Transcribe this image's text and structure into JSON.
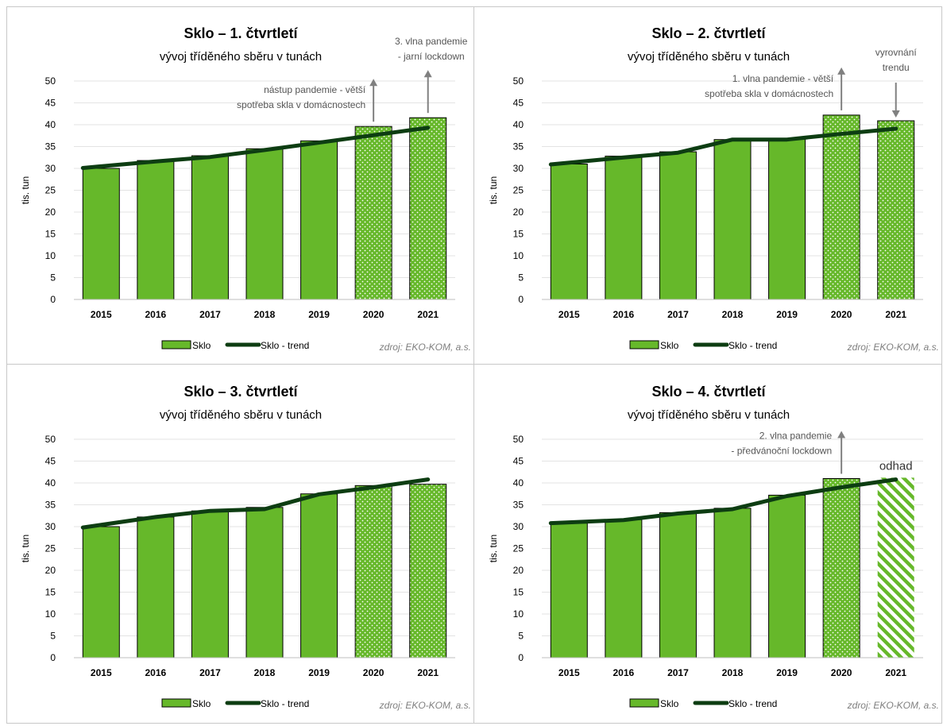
{
  "colors": {
    "bar": "#66b82a",
    "bar_border": "#000000",
    "trend": "#0d3d12",
    "gridline": "#e3e3e3",
    "annotation": "#555555",
    "arrow": "#808080",
    "source": "#7f7f7f"
  },
  "chart_data": [
    {
      "type": "bar",
      "title": "Sklo – 1. čtvrtletí",
      "subtitle": "vývoj tříděného sběru v tunách",
      "ylabel": "tis. tun",
      "ylim": [
        0,
        50
      ],
      "yticks": [
        "0",
        "5",
        "10",
        "15",
        "20",
        "25",
        "30",
        "35",
        "40",
        "45",
        "50"
      ],
      "categories": [
        "2015",
        "2016",
        "2017",
        "2018",
        "2019",
        "2020",
        "2021"
      ],
      "series": [
        {
          "name": "Sklo",
          "values": [
            30.0,
            31.8,
            32.9,
            34.5,
            36.3,
            39.6,
            41.6
          ],
          "pattern": [
            "solid",
            "solid",
            "solid",
            "solid",
            "solid",
            "dots",
            "dots"
          ]
        },
        {
          "name": "Sklo - trend",
          "type": "line",
          "values": [
            30.1,
            31.6,
            32.6,
            34.2,
            35.9,
            37.6,
            39.3
          ]
        }
      ],
      "annotations": [
        {
          "lines": [
            "nástup pandemie - větší",
            "spotřeba skla v domácnostech"
          ],
          "category": "2020",
          "arrow": "up"
        },
        {
          "lines": [
            "3. vlna pandemie",
            "- jarní lockdown"
          ],
          "category": "2021",
          "arrow": "up"
        }
      ],
      "legend": {
        "placement": "bottom",
        "items": [
          "Sklo",
          "Sklo - trend"
        ]
      },
      "source": "zdroj: EKO-KOM, a.s.",
      "grid": true
    },
    {
      "type": "bar",
      "title": "Sklo – 2. čtvrtletí",
      "subtitle": "vývoj tříděného sběru v tunách",
      "ylabel": "tis. tun",
      "ylim": [
        0,
        50
      ],
      "yticks": [
        "0",
        "5",
        "10",
        "15",
        "20",
        "25",
        "30",
        "35",
        "40",
        "45",
        "50"
      ],
      "categories": [
        "2015",
        "2016",
        "2017",
        "2018",
        "2019",
        "2020",
        "2021"
      ],
      "series": [
        {
          "name": "Sklo",
          "values": [
            31.0,
            32.8,
            33.8,
            36.6,
            36.8,
            42.2,
            40.9
          ],
          "pattern": [
            "solid",
            "solid",
            "solid",
            "solid",
            "solid",
            "dots",
            "dots"
          ]
        },
        {
          "name": "Sklo - trend",
          "type": "line",
          "values": [
            30.9,
            32.5,
            33.6,
            36.6,
            36.6,
            37.9,
            39.1
          ]
        }
      ],
      "annotations": [
        {
          "lines": [
            "1. vlna pandemie - větší",
            "spotřeba skla v domácnostech"
          ],
          "category": "2020",
          "arrow": "up"
        },
        {
          "lines": [
            "vyrovnání",
            "trendu"
          ],
          "category": "2021",
          "arrow": "down"
        }
      ],
      "legend": {
        "placement": "bottom",
        "items": [
          "Sklo",
          "Sklo - trend"
        ]
      },
      "source": "zdroj: EKO-KOM, a.s.",
      "grid": true
    },
    {
      "type": "bar",
      "title": "Sklo – 3. čtvrtletí",
      "subtitle": "vývoj tříděného sběru v tunách",
      "ylabel": "tis. tun",
      "ylim": [
        0,
        50
      ],
      "yticks": [
        "0",
        "5",
        "10",
        "15",
        "20",
        "25",
        "30",
        "35",
        "40",
        "45",
        "50"
      ],
      "categories": [
        "2015",
        "2016",
        "2017",
        "2018",
        "2019",
        "2020",
        "2021"
      ],
      "series": [
        {
          "name": "Sklo",
          "values": [
            30.0,
            32.2,
            33.6,
            34.4,
            37.5,
            39.4,
            39.7
          ],
          "pattern": [
            "solid",
            "solid",
            "solid",
            "solid",
            "solid",
            "dots",
            "dots"
          ]
        },
        {
          "name": "Sklo - trend",
          "type": "line",
          "values": [
            29.8,
            32.2,
            33.6,
            34.0,
            37.4,
            39.0,
            40.8
          ]
        }
      ],
      "annotations": [],
      "legend": {
        "placement": "bottom",
        "items": [
          "Sklo",
          "Sklo - trend"
        ]
      },
      "source": "zdroj: EKO-KOM, a.s.",
      "grid": true
    },
    {
      "type": "bar",
      "title": "Sklo – 4. čtvrtletí",
      "subtitle": "vývoj tříděného sběru v tunách",
      "ylabel": "tis. tun",
      "ylim": [
        0,
        50
      ],
      "yticks": [
        "0",
        "5",
        "10",
        "15",
        "20",
        "25",
        "30",
        "35",
        "40",
        "45",
        "50"
      ],
      "categories": [
        "2015",
        "2016",
        "2017",
        "2018",
        "2019",
        "2020",
        "2021"
      ],
      "series": [
        {
          "name": "Sklo",
          "values": [
            30.8,
            31.6,
            33.2,
            34.2,
            37.2,
            41.0,
            41.2
          ],
          "pattern": [
            "solid",
            "solid",
            "solid",
            "solid",
            "solid",
            "dots",
            "hatch"
          ]
        },
        {
          "name": "Sklo - trend",
          "type": "line",
          "values": [
            30.8,
            31.5,
            33.0,
            34.0,
            37.0,
            39.0,
            40.8
          ]
        }
      ],
      "annotations": [
        {
          "lines": [
            "2. vlna pandemie",
            "- předvánoční lockdown"
          ],
          "category": "2020",
          "arrow": "up"
        },
        {
          "lines": [
            "odhad"
          ],
          "category": "2021",
          "arrow": "none"
        }
      ],
      "legend": {
        "placement": "bottom",
        "items": [
          "Sklo",
          "Sklo - trend"
        ]
      },
      "source": "zdroj: EKO-KOM, a.s.",
      "grid": true
    }
  ]
}
